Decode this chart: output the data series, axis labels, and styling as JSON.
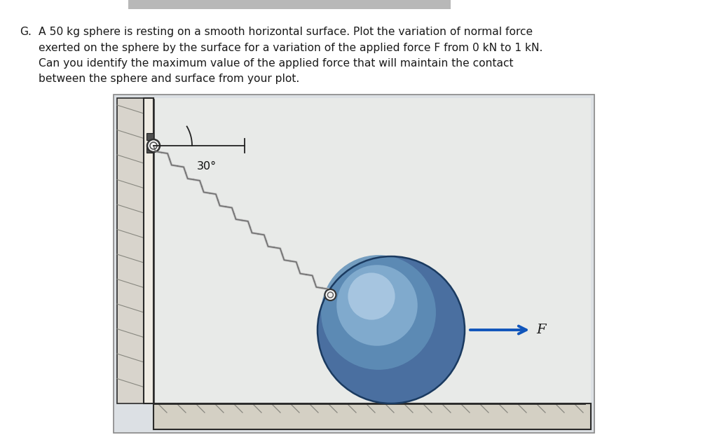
{
  "fig_width": 10.13,
  "fig_height": 6.31,
  "dpi": 100,
  "background_color": "#ffffff",
  "text_color": "#1a1a1a",
  "problem_label": "G.",
  "problem_text_line1": "A 50 kg sphere is resting on a smooth horizontal surface. Plot the variation of normal force",
  "problem_text_line2": "exerted on the sphere by the surface for a variation of the applied force F from 0 kN to 1 kN.",
  "problem_text_line3": "Can you identify the maximum value of the applied force that will maintain the contact",
  "problem_text_line4": "between the sphere and surface from your plot.",
  "angle_label": "30°",
  "force_label": "F",
  "header_bar_color": "#b8b8b8",
  "box_bg": "#dce0e4",
  "box_border": "#888888",
  "wall_face_color": "#e8e4dc",
  "wall_side_color": "#d0c8b8",
  "wall_edge_color": "#2a2a2a",
  "floor_face_color": "#d8d4c8",
  "floor_edge_color": "#2a2a2a",
  "inner_bg": "#e8eaec",
  "pin_color": "#ffffff",
  "pin_edge": "#333333",
  "pin_plate_color": "#606060",
  "chain_color": "#707070",
  "chain_light": "#c8c8c8",
  "sphere_base": "#4a6fa0",
  "sphere_mid": "#7aaacf",
  "sphere_light": "#b8d0e8",
  "sphere_edge": "#1a3a60",
  "arrow_color": "#1055bb",
  "force_label_color": "#1a1a1a"
}
